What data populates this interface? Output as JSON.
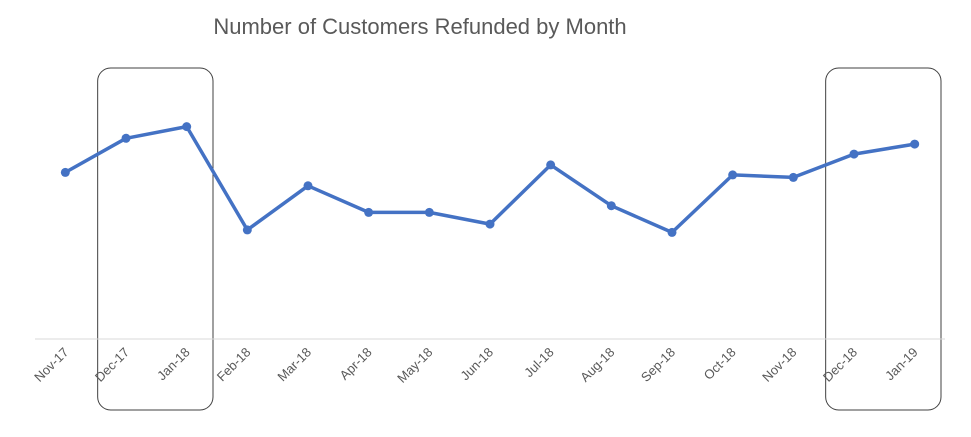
{
  "chart_data": {
    "type": "line",
    "title": "Number of Customers Refunded by Month",
    "xlabel": "",
    "ylabel": "",
    "categories": [
      "Nov-17",
      "Dec-17",
      "Jan-18",
      "Feb-18",
      "Mar-18",
      "Apr-18",
      "May-18",
      "Jun-18",
      "Jul-18",
      "Aug-18",
      "Sep-18",
      "Oct-18",
      "Nov-18",
      "Dec-18",
      "Jan-19"
    ],
    "series": [
      {
        "values": [
          200,
          241,
          255,
          131,
          184,
          152,
          152,
          138,
          209,
          160,
          128,
          197,
          194,
          222,
          234
        ],
        "color": "#4472C4"
      }
    ],
    "ylim": [
      0,
      335
    ],
    "y_axis_visible": false,
    "grid": false,
    "legend": "none",
    "highlighted_ranges": [
      [
        "Dec-17",
        "Jan-18"
      ],
      [
        "Dec-18",
        "Jan-19"
      ]
    ],
    "colors": {
      "line": "#4472C4",
      "text": "#595959",
      "axis": "#d9d9d9",
      "highlight_box": "#404040"
    }
  }
}
